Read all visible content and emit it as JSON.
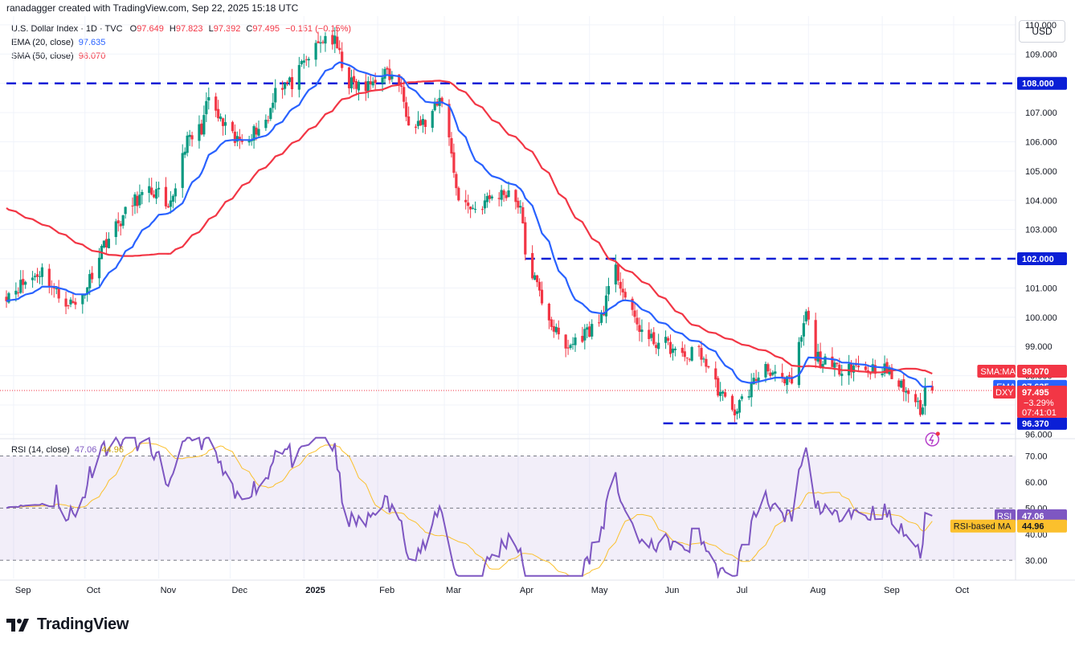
{
  "header": {
    "published": "ranadagger created with TradingView.com, Sep 22, 2025 15:18 UTC",
    "symbol": "U.S. Dollar Index · 1D · TVC",
    "o_key": "O",
    "o": "97.649",
    "h_key": "H",
    "h": "97.823",
    "l_key": "L",
    "l": "97.392",
    "c_key": "C",
    "c": "97.495",
    "change": "−0.151 (−0.15%)",
    "ema_label": "EMA (20, close)",
    "ema_value": "97.635",
    "sma_label": "SMA (50, close)",
    "sma_value": "98.070",
    "currency": "USD"
  },
  "rsi_legend": {
    "label": "RSI (14, close)",
    "value": "47.06",
    "ma_value": "44.96"
  },
  "brand": "TradingView",
  "colors": {
    "up": "#089981",
    "down": "#f23645",
    "ema": "#2962ff",
    "sma": "#f23645",
    "rsi": "#7e57c2",
    "rsi_ma": "#fbc02d",
    "hline": "#0b1fd6",
    "grid": "#f0f3fa"
  },
  "chart_data": [
    {
      "type": "candlestick",
      "title": "U.S. Dollar Index · 1D · TVC",
      "ylim": [
        95.9,
        110.3
      ],
      "y_ticks": [
        "96.000",
        "97.000",
        "98.000",
        "99.000",
        "100.000",
        "101.000",
        "102.000",
        "103.000",
        "104.000",
        "105.000",
        "106.000",
        "107.000",
        "108.000",
        "109.000",
        "110.000"
      ],
      "x_ticks": [
        {
          "label": "Sep",
          "date": "2024-09-01"
        },
        {
          "label": "Oct",
          "date": "2024-10-01"
        },
        {
          "label": "Nov",
          "date": "2024-11-01"
        },
        {
          "label": "Dec",
          "date": "2024-12-01"
        },
        {
          "label": "2025",
          "date": "2025-01-01"
        },
        {
          "label": "Feb",
          "date": "2025-02-01"
        },
        {
          "label": "Mar",
          "date": "2025-03-01"
        },
        {
          "label": "Apr",
          "date": "2025-04-01"
        },
        {
          "label": "May",
          "date": "2025-05-01"
        },
        {
          "label": "Jun",
          "date": "2025-06-01"
        },
        {
          "label": "Jul",
          "date": "2025-07-01"
        },
        {
          "label": "Aug",
          "date": "2025-08-01"
        },
        {
          "label": "Sep",
          "date": "2025-09-01"
        },
        {
          "label": "Oct",
          "date": "2025-10-01"
        }
      ],
      "x_range": [
        "2024-08-29",
        "2025-10-27"
      ],
      "close_anchors": [
        [
          "2024-08-29",
          100.8
        ],
        [
          "2024-09-06",
          101.2
        ],
        [
          "2024-09-13",
          101.6
        ],
        [
          "2024-09-20",
          100.7
        ],
        [
          "2024-09-27",
          100.4
        ],
        [
          "2024-10-01",
          100.9
        ],
        [
          "2024-10-08",
          102.4
        ],
        [
          "2024-10-15",
          103.2
        ],
        [
          "2024-10-22",
          104.0
        ],
        [
          "2024-10-29",
          104.3
        ],
        [
          "2024-11-01",
          104.2
        ],
        [
          "2024-11-05",
          103.5
        ],
        [
          "2024-11-12",
          105.9
        ],
        [
          "2024-11-19",
          106.5
        ],
        [
          "2024-11-22",
          107.5
        ],
        [
          "2024-11-26",
          106.8
        ],
        [
          "2024-12-03",
          106.0
        ],
        [
          "2024-12-10",
          106.3
        ],
        [
          "2024-12-17",
          106.8
        ],
        [
          "2024-12-20",
          107.9
        ],
        [
          "2024-12-27",
          108.0
        ],
        [
          "2025-01-03",
          108.9
        ],
        [
          "2025-01-10",
          109.6
        ],
        [
          "2025-01-14",
          109.4
        ],
        [
          "2025-01-20",
          108.0
        ],
        [
          "2025-01-27",
          107.8
        ],
        [
          "2025-02-03",
          108.4
        ],
        [
          "2025-02-10",
          108.0
        ],
        [
          "2025-02-14",
          106.8
        ],
        [
          "2025-02-21",
          106.6
        ],
        [
          "2025-02-28",
          107.5
        ],
        [
          "2025-03-04",
          105.6
        ],
        [
          "2025-03-07",
          104.0
        ],
        [
          "2025-03-14",
          103.7
        ],
        [
          "2025-03-21",
          104.1
        ],
        [
          "2025-03-28",
          104.3
        ],
        [
          "2025-04-02",
          103.8
        ],
        [
          "2025-04-04",
          102.2
        ],
        [
          "2025-04-10",
          100.8
        ],
        [
          "2025-04-16",
          99.6
        ],
        [
          "2025-04-21",
          98.9
        ],
        [
          "2025-04-28",
          99.4
        ],
        [
          "2025-05-05",
          99.8
        ],
        [
          "2025-05-12",
          101.6
        ],
        [
          "2025-05-19",
          100.0
        ],
        [
          "2025-05-26",
          99.2
        ],
        [
          "2025-06-02",
          99.1
        ],
        [
          "2025-06-09",
          98.6
        ],
        [
          "2025-06-16",
          98.9
        ],
        [
          "2025-06-23",
          97.7
        ],
        [
          "2025-06-30",
          96.7
        ],
        [
          "2025-07-07",
          97.5
        ],
        [
          "2025-07-14",
          98.4
        ],
        [
          "2025-07-21",
          97.7
        ],
        [
          "2025-07-25",
          97.8
        ],
        [
          "2025-07-31",
          100.1
        ],
        [
          "2025-08-04",
          98.7
        ],
        [
          "2025-08-11",
          98.2
        ],
        [
          "2025-08-18",
          98.4
        ],
        [
          "2025-08-25",
          98.2
        ],
        [
          "2025-09-01",
          98.3
        ],
        [
          "2025-09-08",
          97.7
        ],
        [
          "2025-09-15",
          97.2
        ],
        [
          "2025-09-17",
          96.6
        ],
        [
          "2025-09-19",
          97.6
        ],
        [
          "2025-09-22",
          97.495
        ]
      ],
      "last_candle": {
        "date": "2025-09-22",
        "open": 97.649,
        "high": 97.823,
        "low": 97.392,
        "close": 97.495
      },
      "indicators": [
        {
          "name": "SMA:MA",
          "value": 98.07
        },
        {
          "name": "EMA",
          "value": 97.635
        }
      ],
      "price_label": {
        "name": "DXY",
        "value": "97.495",
        "change": "−3.29%",
        "countdown": "07:41:01"
      },
      "horizontal_levels": [
        {
          "value": 108.0,
          "label": "108.000",
          "from": "2024-08-29"
        },
        {
          "value": 102.0,
          "label": "102.000",
          "from": "2025-04-04"
        },
        {
          "value": 96.37,
          "label": "96.370",
          "from": "2025-06-01"
        }
      ],
      "grid": true
    },
    {
      "type": "line",
      "title": "RSI (14, close)",
      "ylim": [
        23,
        76
      ],
      "y_ticks": [
        "30.00",
        "40.00",
        "50.00",
        "60.00",
        "70.00"
      ],
      "band": [
        30,
        70
      ],
      "series": [
        {
          "name": "RSI",
          "values": "derived from close",
          "last": 47.06
        },
        {
          "name": "RSI-based MA",
          "last": 44.96
        }
      ]
    }
  ]
}
